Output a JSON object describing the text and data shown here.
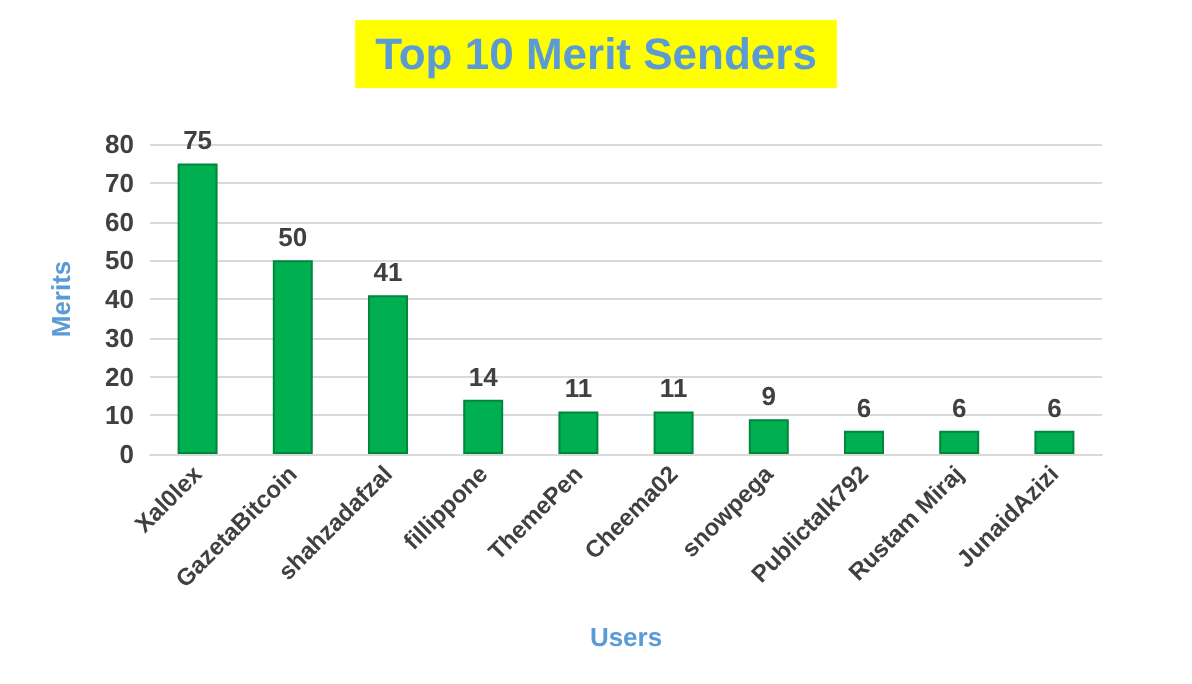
{
  "chart_data": {
    "type": "bar",
    "title": "Top 10 Merit Senders",
    "xlabel": "Users",
    "ylabel": "Merits",
    "categories": [
      "Xal0lex",
      "GazetaBitcoin",
      "shahzadafzal",
      "fillippone",
      "ThemePen",
      "Cheema02",
      "snowpega",
      "Publictalk792",
      "Rustam Miraj",
      "JunaidAzizi"
    ],
    "values": [
      75,
      50,
      41,
      14,
      11,
      11,
      9,
      6,
      6,
      6
    ],
    "color": "#00b050",
    "ylim": [
      0,
      80
    ],
    "yticks": [
      0,
      10,
      20,
      30,
      40,
      50,
      60,
      70,
      80
    ],
    "grid": "y",
    "data_labels": true
  }
}
